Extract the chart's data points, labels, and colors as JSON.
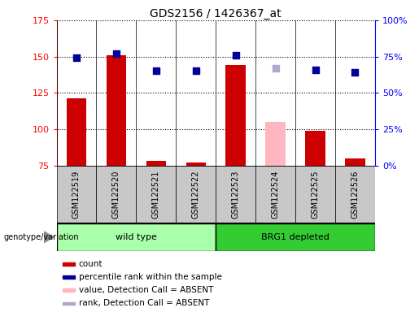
{
  "title": "GDS2156 / 1426367_at",
  "samples": [
    "GSM122519",
    "GSM122520",
    "GSM122521",
    "GSM122522",
    "GSM122523",
    "GSM122524",
    "GSM122525",
    "GSM122526"
  ],
  "count_values": [
    121,
    151,
    78,
    77,
    144,
    null,
    99,
    80
  ],
  "count_absent": [
    null,
    null,
    null,
    null,
    null,
    105,
    null,
    null
  ],
  "rank_values": [
    149,
    152,
    140,
    140,
    151,
    null,
    141,
    139
  ],
  "rank_absent": [
    null,
    null,
    null,
    null,
    null,
    142,
    null,
    null
  ],
  "left_ylim": [
    75,
    175
  ],
  "left_yticks": [
    75,
    100,
    125,
    150,
    175
  ],
  "right_ylim": [
    0,
    100
  ],
  "right_yticks": [
    0,
    25,
    50,
    75,
    100
  ],
  "right_yticklabels": [
    "0%",
    "25%",
    "50%",
    "75%",
    "100%"
  ],
  "bar_color_normal": "#CC0000",
  "bar_color_absent": "#FFB6C1",
  "dot_color_normal": "#000099",
  "dot_color_absent": "#AAAACC",
  "wild_type_color": "#AAFFAA",
  "brg1_color": "#33CC33",
  "legend_labels": [
    "count",
    "percentile rank within the sample",
    "value, Detection Call = ABSENT",
    "rank, Detection Call = ABSENT"
  ],
  "legend_colors": [
    "#CC0000",
    "#000099",
    "#FFB6C1",
    "#AAAACC"
  ]
}
